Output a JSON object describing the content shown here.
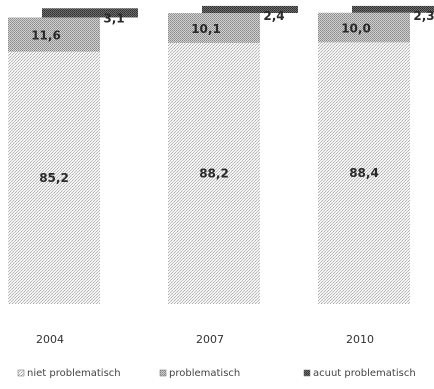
{
  "chart_data": {
    "type": "bar",
    "stacked": true,
    "categories": [
      "2004",
      "2007",
      "2010"
    ],
    "series": [
      {
        "name": "niet problematisch",
        "values": [
          85.2,
          88.2,
          88.4
        ],
        "labels": [
          "85,2",
          "88,2",
          "88,4"
        ],
        "pattern": "light-dots"
      },
      {
        "name": "problematisch",
        "values": [
          11.6,
          10.1,
          10.0
        ],
        "labels": [
          "11,6",
          "10,1",
          "10,0"
        ],
        "pattern": "dark-dots"
      },
      {
        "name": "acuut problematisch",
        "values": [
          3.1,
          2.4,
          2.3
        ],
        "labels": [
          "3,1",
          "2,4",
          "2,3"
        ],
        "pattern": "checker"
      }
    ],
    "ylim": [
      0,
      100
    ],
    "grid": false,
    "legend_position": "bottom"
  }
}
